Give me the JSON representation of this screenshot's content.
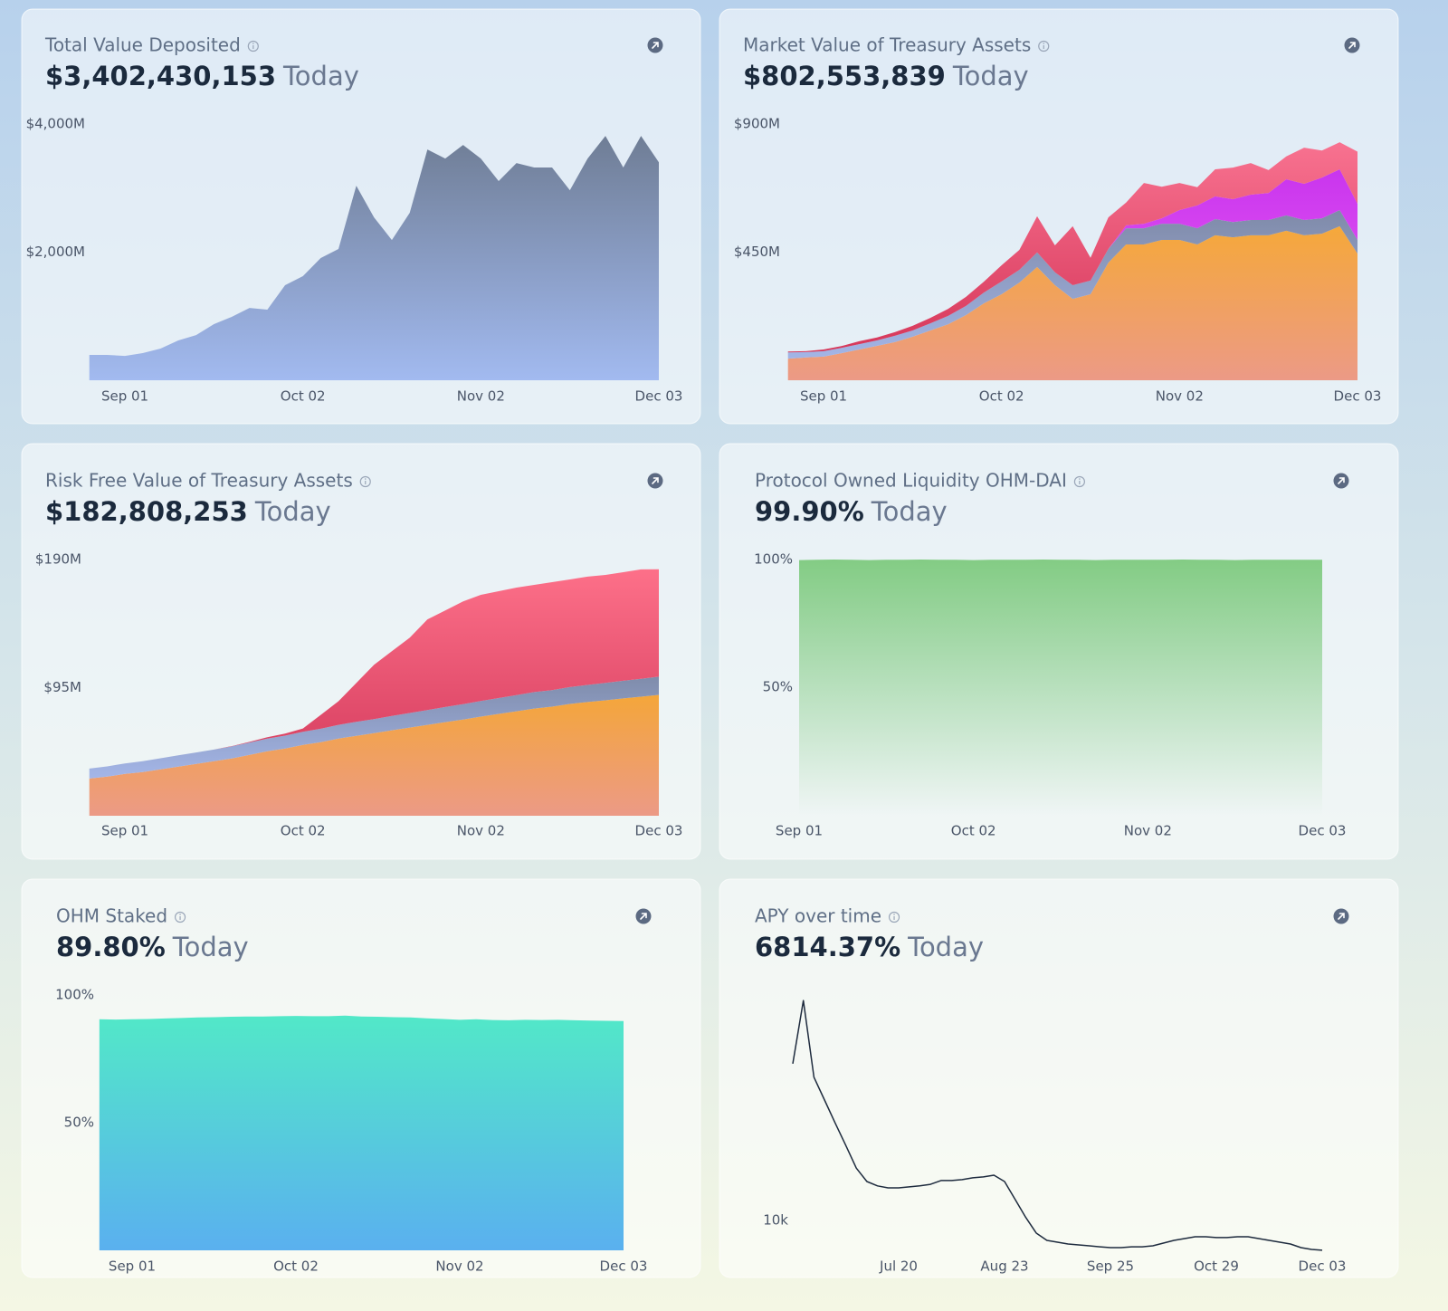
{
  "chart_data": [
    {
      "type": "area",
      "title": "Total Value Deposited",
      "headline": "$3,402,430,153",
      "suffix": "Today",
      "categories": [
        null,
        null,
        "Sep 01",
        null,
        null,
        null,
        null,
        null,
        null,
        null,
        null,
        null,
        "Oct 02",
        null,
        null,
        null,
        null,
        null,
        null,
        null,
        null,
        null,
        "Nov 02",
        null,
        null,
        null,
        null,
        null,
        null,
        null,
        null,
        null,
        "Dec 03"
      ],
      "series": [
        {
          "gradient": [
            "#6f7d95",
            "#a2baf0"
          ],
          "values": [
            396,
            396,
            380,
            424,
            495,
            622,
            706,
            876,
            989,
            1130,
            1102,
            1484,
            1625,
            1908,
            2049,
            3038,
            2543,
            2190,
            2614,
            3603,
            3462,
            3674,
            3462,
            3109,
            3391,
            3321,
            3321,
            2967,
            3462,
            3815,
            3321,
            3815,
            3402
          ]
        }
      ],
      "ylim": [
        0,
        4000
      ],
      "yticks": [
        {
          "value": 4000,
          "label": "$4,000M"
        },
        {
          "value": 2000,
          "label": "$2,000M"
        }
      ]
    },
    {
      "type": "area",
      "stacked": true,
      "title": "Market Value of Treasury Assets",
      "headline": "$802,553,839",
      "suffix": "Today",
      "categories": [
        null,
        null,
        "Sep 01",
        null,
        null,
        null,
        null,
        null,
        null,
        null,
        null,
        null,
        "Oct 02",
        null,
        null,
        null,
        null,
        null,
        null,
        null,
        null,
        null,
        "Nov 02",
        null,
        null,
        null,
        null,
        null,
        null,
        null,
        null,
        null,
        "Dec 03"
      ],
      "series": [
        {
          "gradient": [
            "#f5a83a",
            "#ec9a86"
          ],
          "values": [
            76,
            80,
            83,
            95,
            108,
            121,
            134,
            153,
            175,
            197,
            229,
            270,
            302,
            343,
            398,
            334,
            286,
            302,
            413,
            477,
            477,
            493,
            493,
            477,
            509,
            502,
            509,
            509,
            525,
            509,
            515,
            541,
            445
          ]
        },
        {
          "gradient": [
            "#7f8aa8",
            "#a3b5e6"
          ],
          "values": [
            22,
            19,
            19,
            19,
            19,
            19,
            22,
            22,
            25,
            29,
            32,
            38,
            45,
            45,
            51,
            45,
            48,
            48,
            48,
            57,
            57,
            57,
            57,
            57,
            57,
            54,
            54,
            54,
            54,
            54,
            54,
            57,
            48
          ]
        },
        {
          "gradient": [
            "#c935ee",
            "#ea60f2"
          ],
          "values": [
            0,
            0,
            0,
            0,
            0,
            0,
            0,
            0,
            0,
            0,
            0,
            0,
            0,
            0,
            0,
            0,
            0,
            0,
            0,
            10,
            16,
            19,
            48,
            80,
            80,
            80,
            89,
            95,
            127,
            127,
            143,
            143,
            127
          ]
        },
        {
          "gradient": [
            "#f87290",
            "#d6375a"
          ],
          "values": [
            3,
            3,
            6,
            6,
            10,
            10,
            13,
            16,
            19,
            25,
            32,
            38,
            57,
            70,
            127,
            95,
            207,
            80,
            111,
            80,
            143,
            111,
            95,
            64,
            95,
            111,
            111,
            80,
            80,
            127,
            95,
            95,
            183
          ]
        }
      ],
      "ylim": [
        0,
        900
      ],
      "yticks": [
        {
          "value": 900,
          "label": "$900M"
        },
        {
          "value": 450,
          "label": "$450M"
        }
      ]
    },
    {
      "type": "area",
      "stacked": true,
      "title": "Risk Free Value of Treasury Assets",
      "headline": "$182,808,253",
      "suffix": "Today",
      "categories": [
        null,
        null,
        "Sep 01",
        null,
        null,
        null,
        null,
        null,
        null,
        null,
        null,
        null,
        "Oct 02",
        null,
        null,
        null,
        null,
        null,
        null,
        null,
        null,
        null,
        "Nov 02",
        null,
        null,
        null,
        null,
        null,
        null,
        null,
        null,
        null,
        "Dec 03"
      ],
      "series": [
        {
          "gradient": [
            "#f4a63a",
            "#ec9a86"
          ],
          "values": [
            27.6,
            29,
            31,
            32.4,
            34.4,
            36.4,
            38.4,
            40.4,
            42.5,
            45.2,
            47.9,
            49.9,
            52.6,
            54.6,
            57.3,
            59.3,
            61.3,
            63.4,
            65.4,
            67.4,
            69.4,
            71.4,
            73.5,
            75.5,
            77.5,
            79.5,
            80.9,
            82.9,
            84.3,
            85.6,
            87,
            88.3,
            89.6
          ]
        },
        {
          "gradient": [
            "#7f8cab",
            "#a4b6e8"
          ],
          "values": [
            7.4,
            7.6,
            7.8,
            8,
            8.2,
            8.4,
            8.5,
            8.7,
            8.9,
            9.1,
            9.3,
            9.5,
            9.7,
            9.9,
            10.1,
            10.3,
            10.4,
            10.6,
            10.8,
            11,
            11.2,
            11.4,
            11.6,
            11.8,
            12,
            12.2,
            12.3,
            12.5,
            12.7,
            12.9,
            13.1,
            13.3,
            13.5
          ]
        },
        {
          "gradient": [
            "#fd7089",
            "#d63d5f"
          ],
          "values": [
            0,
            0,
            0,
            0,
            0,
            0,
            0,
            0,
            0.2,
            0.5,
            1,
            1.5,
            2.4,
            10.3,
            17.5,
            28.8,
            40.2,
            48,
            55.8,
            67.2,
            71.7,
            76.2,
            78.7,
            79.2,
            79.7,
            79.5,
            80,
            79.8,
            80.3,
            80.1,
            80.5,
            81.1,
            79.7
          ]
        }
      ],
      "ylim": [
        0,
        190
      ],
      "yticks": [
        {
          "value": 190,
          "label": "$190M"
        },
        {
          "value": 95,
          "label": "$95M"
        }
      ]
    },
    {
      "type": "area",
      "title": "Protocol Owned Liquidity OHM-DAI",
      "headline": "99.90%",
      "suffix": "Today",
      "categories": [
        "Sep 01",
        null,
        null,
        null,
        null,
        null,
        null,
        null,
        null,
        null,
        "Oct 02",
        null,
        null,
        null,
        null,
        null,
        null,
        null,
        null,
        null,
        "Nov 02",
        null,
        null,
        null,
        null,
        null,
        null,
        null,
        null,
        null,
        "Dec 03"
      ],
      "series": [
        {
          "gradient": [
            "#83cc84",
            "#83cc8400"
          ],
          "values": [
            99.8,
            99.9,
            100,
            99.9,
            99.8,
            99.9,
            99.9,
            100,
            99.9,
            99.9,
            99.8,
            99.9,
            99.9,
            99.9,
            100,
            99.9,
            99.9,
            99.8,
            99.9,
            99.9,
            99.9,
            99.9,
            100,
            99.9,
            99.9,
            99.8,
            99.9,
            99.9,
            99.9,
            99.9,
            99.9
          ]
        }
      ],
      "ylim": [
        0,
        100
      ],
      "yticks": [
        {
          "value": 100,
          "label": "100%"
        },
        {
          "value": 50,
          "label": "50%"
        }
      ]
    },
    {
      "type": "area",
      "title": "OHM Staked",
      "headline": "89.80%",
      "suffix": "Today",
      "categories": [
        null,
        null,
        "Sep 01",
        null,
        null,
        null,
        null,
        null,
        null,
        null,
        null,
        null,
        "Oct 02",
        null,
        null,
        null,
        null,
        null,
        null,
        null,
        null,
        null,
        "Nov 02",
        null,
        null,
        null,
        null,
        null,
        null,
        null,
        null,
        null,
        "Dec 03"
      ],
      "series": [
        {
          "gradient": [
            "#52e8c8",
            "#5ab0ef"
          ],
          "values": [
            90.5,
            90.4,
            90.5,
            90.6,
            90.8,
            91,
            91.2,
            91.3,
            91.5,
            91.6,
            91.6,
            91.7,
            91.8,
            91.7,
            91.7,
            91.9,
            91.6,
            91.5,
            91.3,
            91.2,
            90.9,
            90.6,
            90.3,
            90.5,
            90.2,
            90.1,
            90.3,
            90.2,
            90.3,
            90.1,
            90,
            89.9,
            89.8
          ]
        }
      ],
      "ylim": [
        0,
        100
      ],
      "yticks": [
        {
          "value": 100,
          "label": "100%"
        },
        {
          "value": 50,
          "label": "50%"
        }
      ]
    },
    {
      "type": "line",
      "log": true,
      "title": "APY over time",
      "headline": "6814.37%",
      "suffix": "Today",
      "categories": [
        null,
        null,
        null,
        null,
        null,
        null,
        null,
        null,
        null,
        null,
        "Jul 20",
        null,
        null,
        null,
        null,
        null,
        null,
        null,
        null,
        null,
        "Aug 23",
        null,
        null,
        null,
        null,
        null,
        null,
        null,
        null,
        null,
        "Sep 25",
        null,
        null,
        null,
        null,
        null,
        null,
        null,
        null,
        null,
        "Oct 29",
        null,
        null,
        null,
        null,
        null,
        null,
        null,
        null,
        null,
        "Dec 03"
      ],
      "series": [
        {
          "color": "#1e2b3e",
          "values": [
            75000,
            169000,
            63000,
            47000,
            35000,
            26300,
            19600,
            16500,
            15600,
            15200,
            15200,
            15400,
            15600,
            15900,
            16700,
            16700,
            16900,
            17300,
            17500,
            17900,
            16500,
            13100,
            10400,
            8500,
            7740,
            7560,
            7390,
            7300,
            7220,
            7130,
            7050,
            7050,
            7130,
            7130,
            7220,
            7470,
            7740,
            7920,
            8110,
            8110,
            8020,
            8020,
            8110,
            8110,
            7920,
            7740,
            7560,
            7390,
            7050,
            6890,
            6814.37
          ]
        }
      ],
      "ylim": [
        6500,
        190000
      ],
      "yticks": [
        {
          "value": 10000,
          "label": "10k"
        }
      ]
    }
  ]
}
